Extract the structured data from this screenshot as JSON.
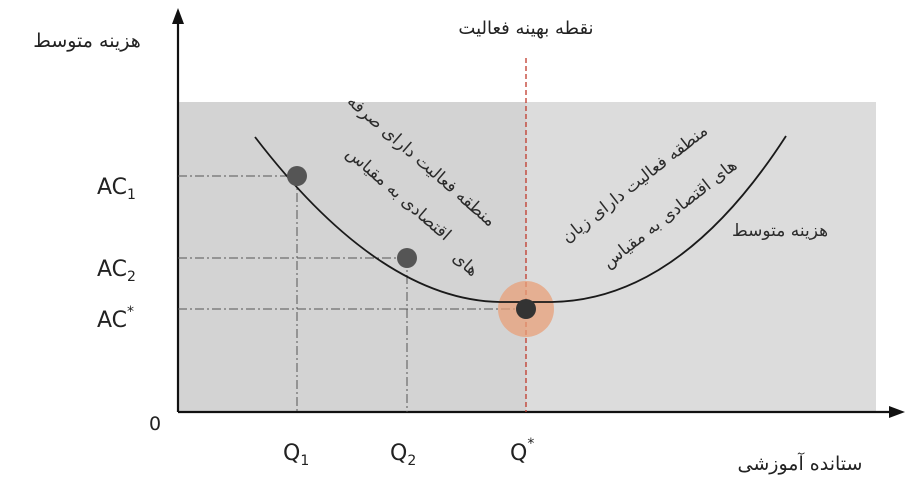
{
  "title": "نقطه بهینه فعالیت",
  "y_axis_label": "هزینه متوسط",
  "x_axis_label": "ستانده آموزشی",
  "origin_label": "0",
  "curve_label": "هزینه متوسط",
  "y_ticks": [
    {
      "base": "AC",
      "sub": "1",
      "sup": ""
    },
    {
      "base": "AC",
      "sub": "2",
      "sup": ""
    },
    {
      "base": "AC",
      "sub": "",
      "sup": "*"
    }
  ],
  "x_ticks": [
    {
      "base": "Q",
      "sub": "1",
      "sup": ""
    },
    {
      "base": "Q",
      "sub": "2",
      "sup": ""
    },
    {
      "base": "Q",
      "sub": "",
      "sup": "*"
    }
  ],
  "left_region": {
    "line1": "منطقه فعالیت دارای صرفه",
    "line2": "اقتصادی به مقیاس",
    "line3": "های"
  },
  "right_region": {
    "line1": "منطقه فعالیت دارای زیان",
    "line2": "های اقتصادی به مقیاس"
  },
  "colors": {
    "left_shade": "#d3d3d3",
    "right_shade": "#dcdcdc",
    "optimum_glow": "#e8a07a",
    "optimum_line": "#c0392b",
    "curve": "#1a1a1a"
  }
}
